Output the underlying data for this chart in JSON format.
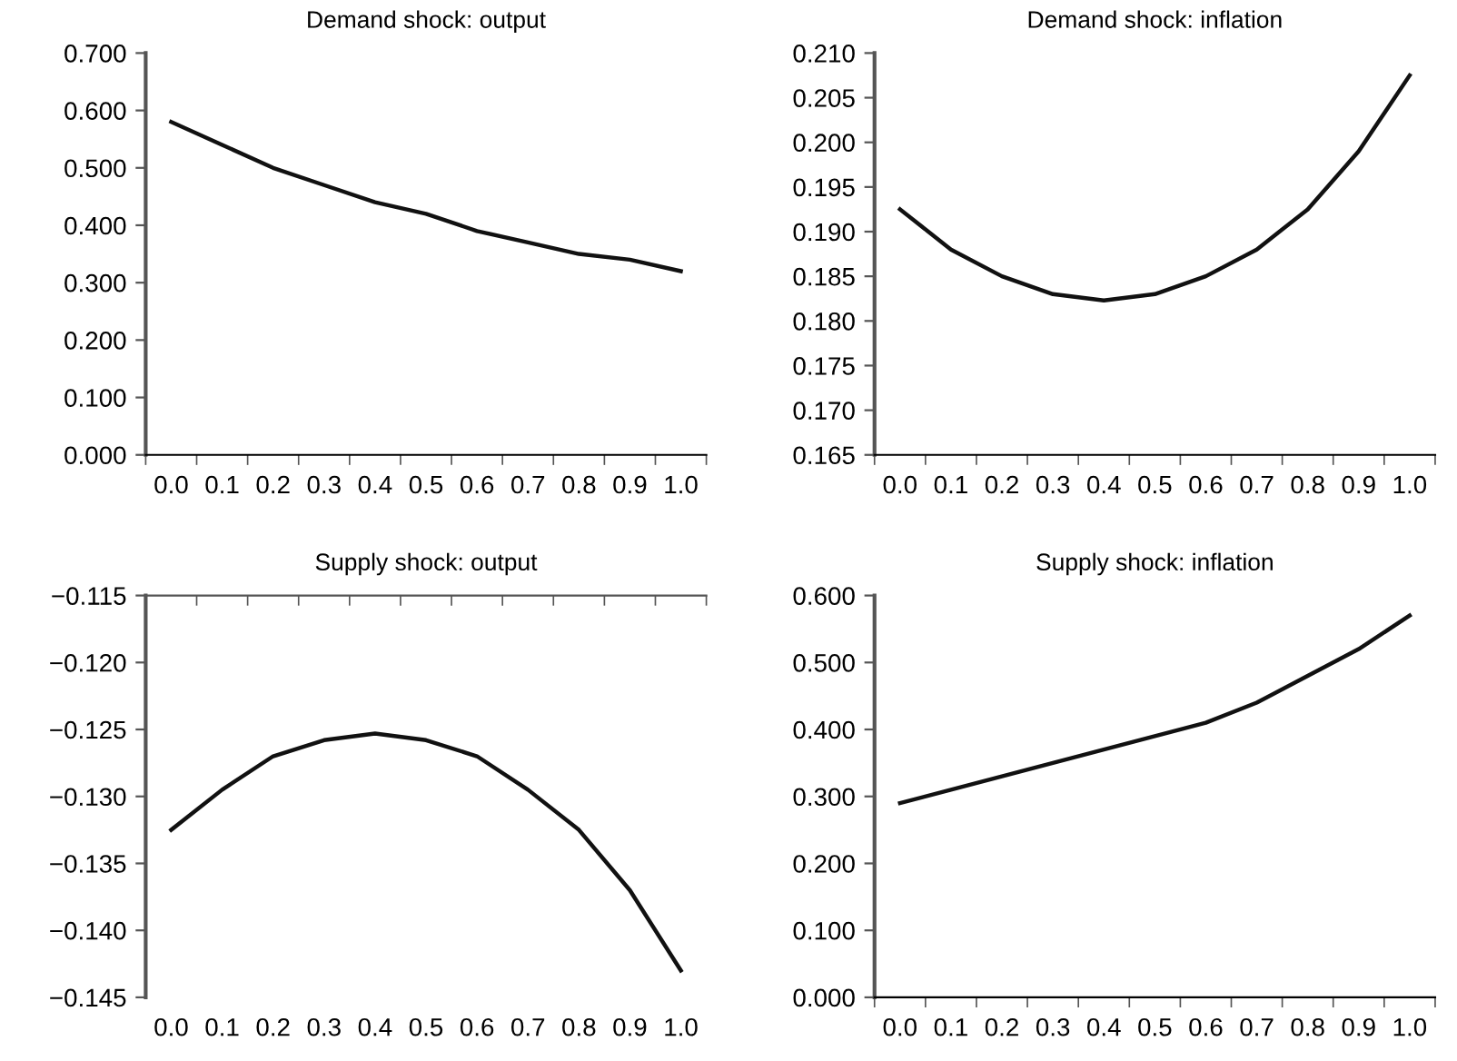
{
  "chart_data": [
    {
      "type": "line",
      "title": "Demand shock: output",
      "categories": [
        "0.0",
        "0.1",
        "0.2",
        "0.3",
        "0.4",
        "0.5",
        "0.6",
        "0.7",
        "0.8",
        "0.9",
        "1.0"
      ],
      "series": [
        {
          "color": "#111111",
          "values": [
            0.58,
            0.54,
            0.5,
            0.47,
            0.44,
            0.42,
            0.39,
            0.37,
            0.35,
            0.34,
            0.32
          ]
        }
      ],
      "ylim": [
        0,
        0.7
      ],
      "yticks": [
        {
          "value": 0,
          "label": "0.000"
        },
        {
          "value": 0.1,
          "label": "0.100"
        },
        {
          "value": 0.2,
          "label": "0.200"
        },
        {
          "value": 0.3,
          "label": "0.300"
        },
        {
          "value": 0.4,
          "label": "0.400"
        },
        {
          "value": 0.5,
          "label": "0.500"
        },
        {
          "value": 0.6,
          "label": "0.600"
        },
        {
          "value": 0.7,
          "label": "0.700"
        }
      ],
      "grid": false,
      "marker": "none",
      "line_style": "solid"
    },
    {
      "type": "line",
      "title": "Demand shock: inflation",
      "categories": [
        "0.0",
        "0.1",
        "0.2",
        "0.3",
        "0.4",
        "0.5",
        "0.6",
        "0.7",
        "0.8",
        "0.9",
        "1.0"
      ],
      "series": [
        {
          "color": "#111111",
          "values": [
            0.1925,
            0.188,
            0.185,
            0.183,
            0.1823,
            0.183,
            0.185,
            0.188,
            0.1925,
            0.199,
            0.2075
          ]
        }
      ],
      "ylim": [
        0.165,
        0.21
      ],
      "yticks": [
        {
          "value": 0.165,
          "label": "0.165"
        },
        {
          "value": 0.17,
          "label": "0.170"
        },
        {
          "value": 0.175,
          "label": "0.175"
        },
        {
          "value": 0.18,
          "label": "0.180"
        },
        {
          "value": 0.185,
          "label": "0.185"
        },
        {
          "value": 0.19,
          "label": "0.190"
        },
        {
          "value": 0.195,
          "label": "0.195"
        },
        {
          "value": 0.2,
          "label": "0.200"
        },
        {
          "value": 0.205,
          "label": "0.205"
        },
        {
          "value": 0.21,
          "label": "0.210"
        }
      ],
      "grid": false,
      "marker": "none",
      "line_style": "solid"
    },
    {
      "type": "line",
      "title": "Supply shock: output",
      "categories": [
        "0.0",
        "0.1",
        "0.2",
        "0.3",
        "0.4",
        "0.5",
        "0.6",
        "0.7",
        "0.8",
        "0.9",
        "1.0"
      ],
      "series": [
        {
          "color": "#111111",
          "values": [
            -0.1325,
            -0.1295,
            -0.127,
            -0.1258,
            -0.1253,
            -0.1258,
            -0.127,
            -0.1295,
            -0.1325,
            -0.137,
            -0.143
          ]
        }
      ],
      "ylim": [
        -0.145,
        -0.115
      ],
      "yticks": [
        {
          "value": -0.145,
          "label": "−0.145"
        },
        {
          "value": -0.14,
          "label": "−0.140"
        },
        {
          "value": -0.135,
          "label": "−0.135"
        },
        {
          "value": -0.13,
          "label": "−0.130"
        },
        {
          "value": -0.125,
          "label": "−0.125"
        },
        {
          "value": -0.12,
          "label": "−0.120"
        },
        {
          "value": -0.115,
          "label": "−0.115"
        }
      ],
      "grid": false,
      "marker": "none",
      "line_style": "solid"
    },
    {
      "type": "line",
      "title": "Supply shock: inflation",
      "categories": [
        "0.0",
        "0.1",
        "0.2",
        "0.3",
        "0.4",
        "0.5",
        "0.6",
        "0.7",
        "0.8",
        "0.9",
        "1.0"
      ],
      "series": [
        {
          "color": "#111111",
          "values": [
            0.29,
            0.31,
            0.33,
            0.35,
            0.37,
            0.39,
            0.41,
            0.44,
            0.48,
            0.52,
            0.57
          ]
        }
      ],
      "ylim": [
        0,
        0.6
      ],
      "yticks": [
        {
          "value": 0,
          "label": "0.000"
        },
        {
          "value": 0.1,
          "label": "0.100"
        },
        {
          "value": 0.2,
          "label": "0.200"
        },
        {
          "value": 0.3,
          "label": "0.300"
        },
        {
          "value": 0.4,
          "label": "0.400"
        },
        {
          "value": 0.5,
          "label": "0.500"
        },
        {
          "value": 0.6,
          "label": "0.600"
        }
      ],
      "grid": false,
      "marker": "none",
      "line_style": "solid"
    }
  ]
}
